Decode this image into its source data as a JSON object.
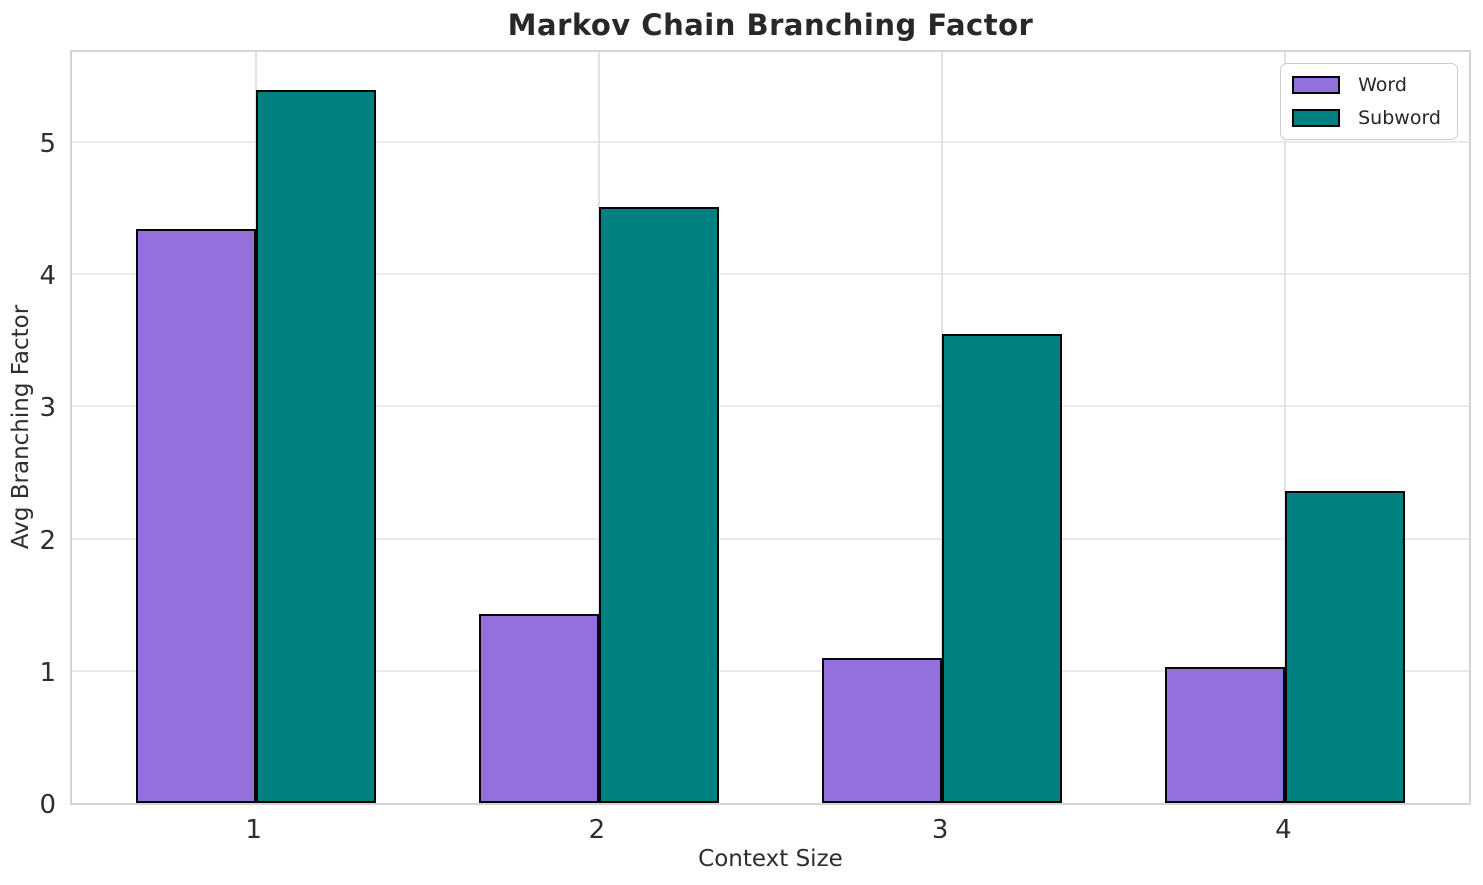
{
  "chart_data": {
    "type": "bar",
    "title": "Markov Chain Branching Factor",
    "xlabel": "Context Size",
    "ylabel": "Avg Branching Factor",
    "categories": [
      "1",
      "2",
      "3",
      "4"
    ],
    "series": [
      {
        "name": "Word",
        "color": "#9370DB",
        "edge_color": "#050505",
        "values": [
          4.34,
          1.43,
          1.1,
          1.03
        ]
      },
      {
        "name": "Subword",
        "color": "#008080",
        "edge_color": "#050505",
        "values": [
          5.39,
          4.51,
          3.55,
          2.36
        ]
      }
    ],
    "ylim": [
      0,
      5.68
    ],
    "yticks": [
      0,
      1,
      2,
      3,
      4,
      5
    ],
    "xlim": [
      -0.535,
      3.535
    ],
    "bar_width_units": 0.35,
    "grid": true,
    "legend_position": "upper right",
    "colors": {
      "background": "#ffffff",
      "grid": "#e9e9e9",
      "spine": "#d4d4d4",
      "text": "#2e2e2e",
      "title_text": "#282828"
    }
  }
}
